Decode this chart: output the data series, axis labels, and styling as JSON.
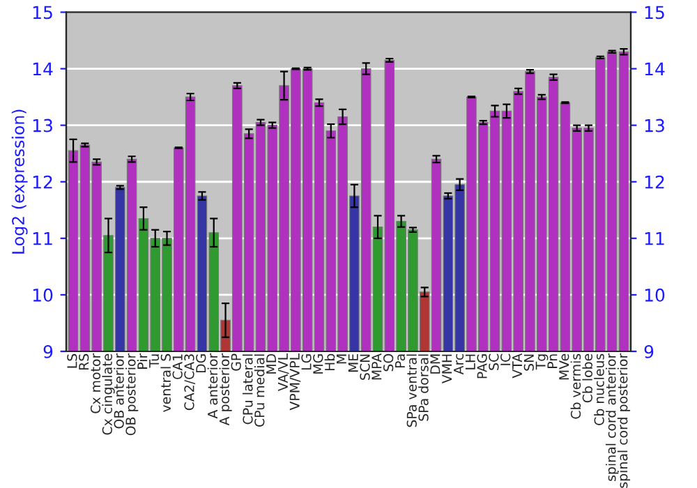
{
  "chart_data": {
    "type": "bar",
    "ylabel": "Log2 (expression)",
    "categories": [
      "LS",
      "RS",
      "Cx motor",
      "Cx cingulate",
      "OB anterior",
      "OB posterior",
      "Pir",
      "Tu",
      "ventral S",
      "CA1",
      "CA2/CA3",
      "DG",
      "A anterior",
      "A posterior",
      "GP",
      "CPu lateral",
      "CPu medial",
      "MD",
      "VA/VL",
      "VPM/VPL",
      "LG",
      "MG",
      "Hb",
      "M",
      "ME",
      "SCN",
      "MPA",
      "SO",
      "Pa",
      "SPa ventral",
      "SPa dorsal",
      "DM",
      "VMH",
      "Arc",
      "LH",
      "PAG",
      "SC",
      "IC",
      "VTA",
      "SN",
      "Tg",
      "Pn",
      "MVe",
      "Cb vermis",
      "Cb lobe",
      "Cb nucleus",
      "spinal cord anterior",
      "spinal cord posterior"
    ],
    "values": [
      12.55,
      12.65,
      12.35,
      11.05,
      11.9,
      12.4,
      11.35,
      11.0,
      11.0,
      12.6,
      13.5,
      11.75,
      11.1,
      9.55,
      13.7,
      12.85,
      13.05,
      13.0,
      13.7,
      14.0,
      14.0,
      13.4,
      12.9,
      13.15,
      11.75,
      14.0,
      11.2,
      14.15,
      11.3,
      11.15,
      10.05,
      12.4,
      11.75,
      11.95,
      13.5,
      13.05,
      13.25,
      13.25,
      13.6,
      13.95,
      13.5,
      13.85,
      13.4,
      12.95,
      12.95,
      14.2,
      14.3,
      14.3
    ],
    "errors": [
      0.2,
      0.03,
      0.05,
      0.3,
      0.03,
      0.05,
      0.2,
      0.15,
      0.12,
      0.01,
      0.06,
      0.07,
      0.25,
      0.3,
      0.05,
      0.08,
      0.05,
      0.05,
      0.25,
      0.01,
      0.02,
      0.06,
      0.12,
      0.13,
      0.2,
      0.1,
      0.2,
      0.03,
      0.1,
      0.04,
      0.08,
      0.06,
      0.05,
      0.1,
      0.01,
      0.03,
      0.1,
      0.12,
      0.05,
      0.03,
      0.04,
      0.05,
      0.01,
      0.05,
      0.05,
      0.02,
      0.02,
      0.05
    ],
    "colors": [
      "#b030c0",
      "#b030c0",
      "#b030c0",
      "#2f9a2f",
      "#3535a5",
      "#b030c0",
      "#2f9a2f",
      "#2f9a2f",
      "#2f9a2f",
      "#b030c0",
      "#b030c0",
      "#3535a5",
      "#2f9a2f",
      "#b03535",
      "#b030c0",
      "#b030c0",
      "#b030c0",
      "#b030c0",
      "#b030c0",
      "#b030c0",
      "#b030c0",
      "#b030c0",
      "#b030c0",
      "#b030c0",
      "#3535a5",
      "#b030c0",
      "#2f9a2f",
      "#b030c0",
      "#2f9a2f",
      "#2f9a2f",
      "#b03535",
      "#b030c0",
      "#3535a5",
      "#3535a5",
      "#b030c0",
      "#b030c0",
      "#b030c0",
      "#b030c0",
      "#b030c0",
      "#b030c0",
      "#b030c0",
      "#b030c0",
      "#b030c0",
      "#b030c0",
      "#b030c0",
      "#b030c0",
      "#b030c0",
      "#b030c0"
    ],
    "ylim": [
      9,
      15
    ],
    "yticks": [
      9,
      10,
      11,
      12,
      13,
      14,
      15
    ],
    "y2lim": [
      9,
      15
    ],
    "y2ticks": [
      9,
      10,
      11,
      12,
      13,
      14,
      15
    ],
    "grid": "y"
  }
}
